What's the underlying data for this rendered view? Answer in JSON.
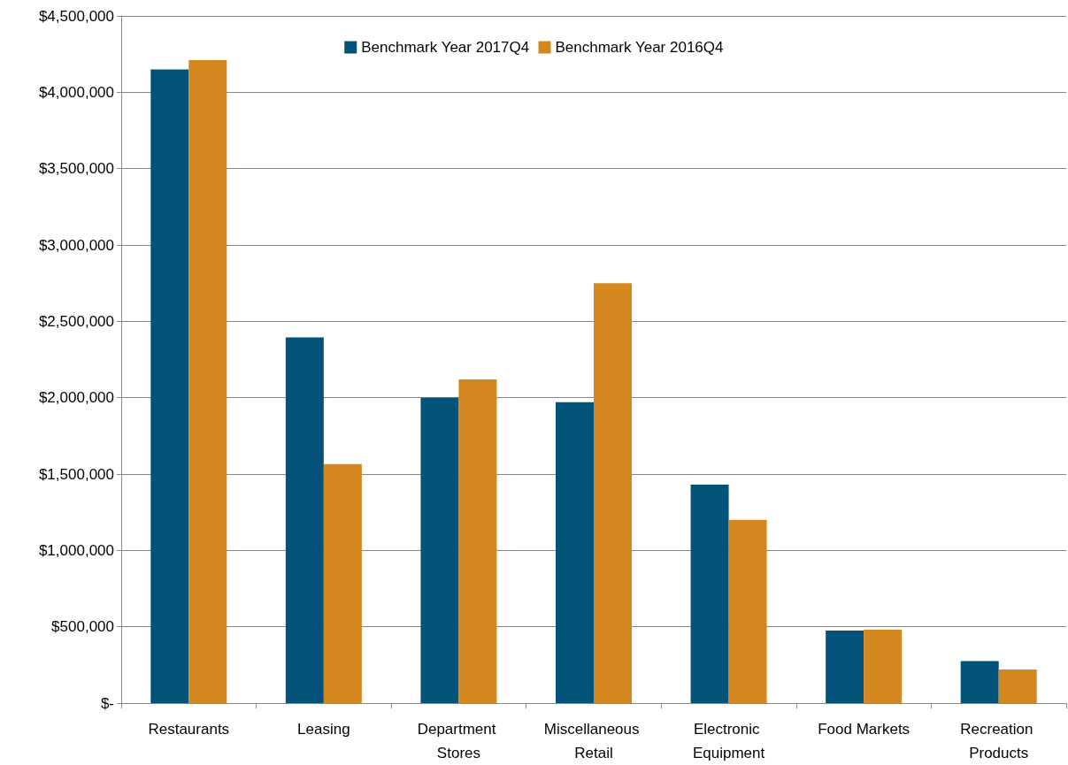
{
  "chart_data": {
    "type": "bar",
    "categories": [
      "Restaurants",
      "Leasing",
      "Department Stores",
      "Miscellaneous Retail",
      "Electronic Equipment",
      "Food Markets",
      "Recreation Products"
    ],
    "series": [
      {
        "name": "Benchmark Year 2017Q4",
        "color": "#03527a",
        "values": [
          4150000,
          2395000,
          2000000,
          1970000,
          1430000,
          475000,
          275000
        ]
      },
      {
        "name": "Benchmark Year 2016Q4",
        "color": "#d4861f",
        "values": [
          4210000,
          1565000,
          2120000,
          2750000,
          1200000,
          480000,
          220000
        ]
      }
    ],
    "ylim": [
      0,
      4500000
    ],
    "yticks": [
      {
        "value": 0,
        "label": "$-"
      },
      {
        "value": 500000,
        "label": "$500,000"
      },
      {
        "value": 1000000,
        "label": "$1,000,000"
      },
      {
        "value": 1500000,
        "label": "$1,500,000"
      },
      {
        "value": 2000000,
        "label": "$2,000,000"
      },
      {
        "value": 2500000,
        "label": "$2,500,000"
      },
      {
        "value": 3000000,
        "label": "$3,000,000"
      },
      {
        "value": 3500000,
        "label": "$3,500,000"
      },
      {
        "value": 4000000,
        "label": "$4,000,000"
      },
      {
        "value": 4500000,
        "label": "$4,500,000"
      }
    ],
    "grid": "y",
    "legend": "top"
  }
}
